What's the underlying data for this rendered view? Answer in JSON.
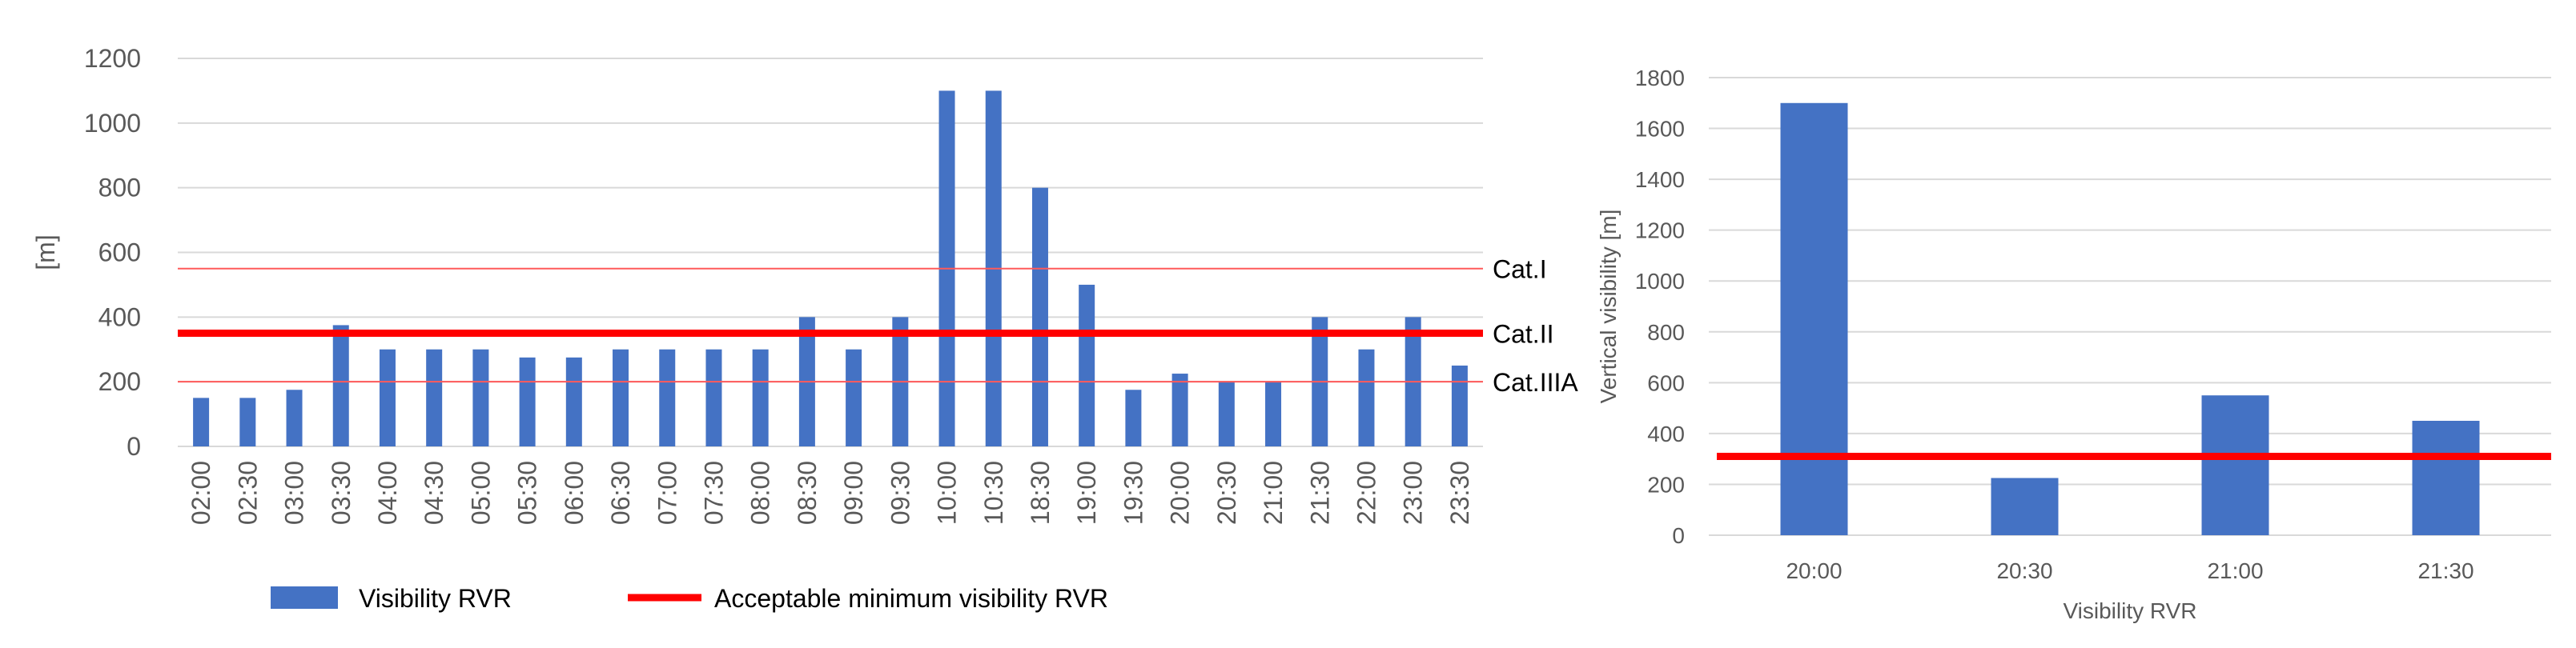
{
  "chart_data": [
    {
      "type": "bar",
      "title": "",
      "xlabel": "",
      "ylabel": "[m]",
      "ylim": [
        0,
        1200
      ],
      "yticks": [
        0,
        200,
        400,
        600,
        800,
        1000,
        1200
      ],
      "grid": true,
      "categories": [
        "02:00",
        "02:30",
        "03:00",
        "03:30",
        "04:00",
        "04:30",
        "05:00",
        "05:30",
        "06:00",
        "06:30",
        "07:00",
        "07:30",
        "08:00",
        "08:30",
        "09:00",
        "09:30",
        "10:00",
        "10:30",
        "18:30",
        "19:00",
        "19:30",
        "20:00",
        "20:30",
        "21:00",
        "21:30",
        "22:00",
        "23:00",
        "23:30"
      ],
      "series": [
        {
          "name": "Visibility RVR",
          "values": [
            150,
            150,
            175,
            375,
            300,
            300,
            300,
            275,
            275,
            300,
            300,
            300,
            300,
            400,
            300,
            400,
            1100,
            1100,
            800,
            500,
            175,
            225,
            200,
            200,
            400,
            300,
            400,
            250
          ]
        }
      ],
      "reference_lines": [
        {
          "label": "Cat.I",
          "value": 550
        },
        {
          "label": "Cat.II",
          "value": 350
        },
        {
          "label": "Cat.IIIA",
          "value": 200
        }
      ],
      "legend": {
        "placement": "bottom",
        "items": [
          "Visibility RVR",
          "Acceptable minimum visibility RVR"
        ]
      },
      "colors": {
        "bar": "#4472c4",
        "limit": "#ff0000",
        "thin": "#ff5a5a"
      }
    },
    {
      "type": "bar",
      "title": "",
      "xlabel": "Visibility RVR",
      "ylabel": "Vertical visibility [m]",
      "ylim": [
        0,
        1800
      ],
      "yticks": [
        0,
        200,
        400,
        600,
        800,
        1000,
        1200,
        1400,
        1600,
        1800
      ],
      "grid": true,
      "categories": [
        "20:00",
        "20:30",
        "21:00",
        "21:30"
      ],
      "series": [
        {
          "name": "Vertical visibility",
          "values": [
            1700,
            225,
            550,
            450
          ]
        }
      ],
      "reference_lines": [
        {
          "label": "",
          "value": 310
        }
      ],
      "colors": {
        "bar": "#4472c4",
        "limit": "#ff0000"
      }
    }
  ]
}
